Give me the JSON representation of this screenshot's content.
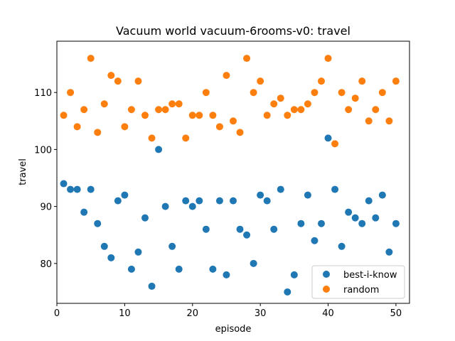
{
  "chart_data": {
    "type": "scatter",
    "title": "Vacuum world vacuum-6rooms-v0: travel",
    "xlabel": "episode",
    "ylabel": "travel",
    "xlim": [
      0,
      52
    ],
    "ylim": [
      73,
      119
    ],
    "xticks": [
      0,
      10,
      20,
      30,
      40,
      50
    ],
    "yticks": [
      80,
      90,
      100,
      110
    ],
    "grid": false,
    "legend_position": "lower-right",
    "series": [
      {
        "name": "best-i-know",
        "color": "#1f77b4",
        "x": [
          1,
          2,
          3,
          4,
          5,
          6,
          7,
          8,
          9,
          10,
          11,
          12,
          13,
          14,
          15,
          16,
          17,
          18,
          19,
          20,
          21,
          22,
          23,
          24,
          25,
          26,
          27,
          28,
          29,
          30,
          31,
          32,
          33,
          34,
          35,
          36,
          37,
          38,
          39,
          40,
          41,
          42,
          43,
          44,
          45,
          46,
          47,
          48,
          49,
          50
        ],
        "y": [
          94,
          93,
          93,
          89,
          93,
          87,
          83,
          81,
          91,
          92,
          79,
          82,
          88,
          76,
          100,
          90,
          83,
          79,
          91,
          90,
          91,
          86,
          79,
          91,
          78,
          91,
          86,
          85,
          80,
          92,
          91,
          86,
          93,
          75,
          78,
          87,
          92,
          84,
          87,
          102,
          93,
          83,
          89,
          88,
          87,
          91,
          88,
          92,
          82,
          87
        ]
      },
      {
        "name": "random",
        "color": "#ff7f0e",
        "x": [
          1,
          2,
          3,
          4,
          5,
          6,
          7,
          8,
          9,
          10,
          11,
          12,
          13,
          14,
          15,
          16,
          17,
          18,
          19,
          20,
          21,
          22,
          23,
          24,
          25,
          26,
          27,
          28,
          29,
          30,
          31,
          32,
          33,
          34,
          35,
          36,
          37,
          38,
          39,
          40,
          41,
          42,
          43,
          44,
          45,
          46,
          47,
          48,
          49,
          50
        ],
        "y": [
          106,
          110,
          104,
          107,
          116,
          103,
          108,
          113,
          112,
          104,
          107,
          112,
          106,
          102,
          107,
          107,
          108,
          108,
          102,
          106,
          106,
          110,
          106,
          104,
          113,
          105,
          103,
          116,
          110,
          112,
          106,
          108,
          109,
          106,
          107,
          107,
          108,
          110,
          112,
          116,
          101,
          110,
          107,
          109,
          112,
          105,
          107,
          110,
          105,
          112
        ]
      }
    ]
  }
}
